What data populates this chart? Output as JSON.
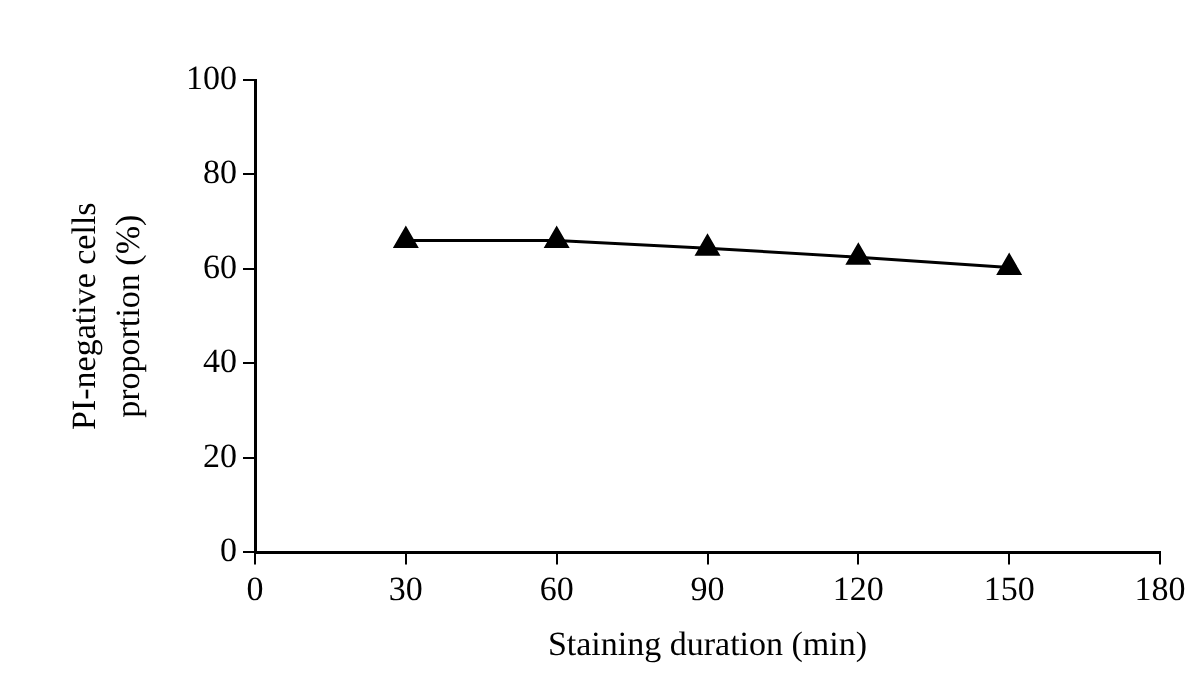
{
  "chart_data": {
    "type": "line",
    "xlabel": "Staining duration (min)",
    "ylabel": "PI-negative cells proportion (%)",
    "x": [
      30,
      60,
      90,
      120,
      150
    ],
    "series": [
      {
        "color": "#000000",
        "values": [
          66,
          66,
          64.4,
          62.5,
          60.3
        ]
      }
    ],
    "xlim": [
      0,
      180
    ],
    "xticks": [
      0,
      30,
      60,
      90,
      120,
      150,
      180
    ],
    "ylim": [
      0,
      100
    ],
    "yticks": [
      0,
      20,
      40,
      60,
      80,
      100
    ],
    "grid": false,
    "legend": false,
    "marker": "triangle",
    "line_style": "solid"
  }
}
